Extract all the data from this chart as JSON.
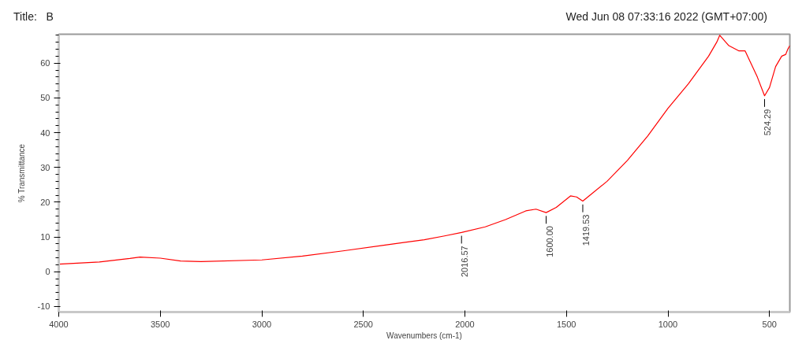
{
  "chart_data": {
    "type": "line",
    "title": "Title:   B",
    "subtitle": "Wed Jun 08 07:33:16 2022 (GMT+07:00)",
    "xlabel": "Wavenumbers (cm-1)",
    "ylabel": "% Transmittance",
    "xlim": [
      4000,
      400
    ],
    "ylim": [
      -11.6,
      68.3
    ],
    "xticks": [
      4000,
      3500,
      3000,
      2500,
      2000,
      1500,
      1000,
      500
    ],
    "yticks": [
      -10,
      0,
      10,
      20,
      30,
      40,
      50,
      60
    ],
    "grid": false,
    "marker": "none",
    "line_style": "solid",
    "series": [
      {
        "color": "#ff0000",
        "x": [
          4000,
          3800,
          3650,
          3600,
          3500,
          3400,
          3300,
          3000,
          2800,
          2600,
          2400,
          2200,
          2100,
          2016.57,
          1900,
          1800,
          1700,
          1650,
          1600,
          1550,
          1480,
          1450,
          1419.53,
          1300,
          1200,
          1100,
          1000,
          900,
          800,
          760,
          745,
          700,
          650,
          620,
          600,
          560,
          524.29,
          500,
          470,
          440,
          420,
          410,
          400
        ],
        "values": [
          2.2,
          2.8,
          3.8,
          4.2,
          3.9,
          3.1,
          2.9,
          3.4,
          4.5,
          6.0,
          7.6,
          9.2,
          10.3,
          11.3,
          12.9,
          15,
          17.5,
          18,
          17.0,
          18.5,
          21.8,
          21.5,
          20.3,
          26,
          32,
          39,
          47,
          54,
          62,
          66,
          68,
          65,
          63.5,
          63.5,
          61,
          56,
          50.6,
          53,
          59,
          62,
          62.5,
          64,
          65
        ]
      }
    ],
    "annotations": [
      {
        "text": "2016.57",
        "x": 2016.57,
        "y": 11.3
      },
      {
        "text": "1600.00",
        "x": 1600.0,
        "y": 17.0
      },
      {
        "text": "1419.53",
        "x": 1419.53,
        "y": 20.3
      },
      {
        "text": "524.29",
        "x": 524.29,
        "y": 50.6
      }
    ]
  }
}
